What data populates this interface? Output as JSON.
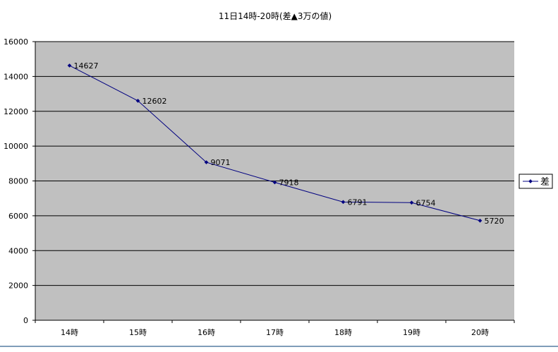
{
  "chart_data": {
    "type": "line",
    "title": "11日14時-20時(差▲3万の値)",
    "xlabel": "",
    "ylabel": "",
    "categories": [
      "14時",
      "15時",
      "16時",
      "17時",
      "18時",
      "19時",
      "20時"
    ],
    "ylim": [
      0,
      16000
    ],
    "yticks": [
      0,
      2000,
      4000,
      6000,
      8000,
      10000,
      12000,
      14000,
      16000
    ],
    "grid": true,
    "legend_position": "right",
    "series": [
      {
        "name": "差",
        "values": [
          14627,
          12602,
          9071,
          7918,
          6791,
          6754,
          5720
        ],
        "labels": [
          "14627",
          "12602",
          "9071",
          "7918",
          "6791",
          "6754",
          "5720"
        ],
        "color": "#000080"
      }
    ],
    "colors": {
      "plot_background": "#c0c0c0",
      "gridline": "#000000"
    }
  }
}
